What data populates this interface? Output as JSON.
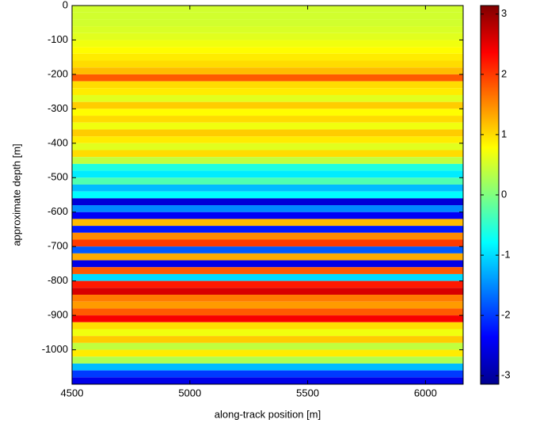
{
  "chart_data": {
    "type": "heatmap",
    "xlabel": "along-track position [m]",
    "ylabel": "approximate depth [m]",
    "xlim": [
      4500,
      6160
    ],
    "xticks": [
      4500,
      5000,
      5500,
      6000
    ],
    "ylim": [
      -1100,
      0
    ],
    "yticks": [
      0,
      -100,
      -200,
      -300,
      -400,
      -500,
      -600,
      -700,
      -800,
      -900,
      -1000
    ],
    "y": [
      -10,
      -30,
      -50,
      -70,
      -90,
      -110,
      -130,
      -150,
      -170,
      -190,
      -210,
      -230,
      -250,
      -270,
      -290,
      -310,
      -330,
      -350,
      -370,
      -390,
      -410,
      -430,
      -450,
      -470,
      -490,
      -510,
      -530,
      -550,
      -570,
      -590,
      -610,
      -630,
      -650,
      -670,
      -690,
      -710,
      -730,
      -750,
      -770,
      -790,
      -810,
      -830,
      -850,
      -870,
      -890,
      -910,
      -930,
      -950,
      -970,
      -990,
      -1010,
      -1030,
      -1050,
      -1070,
      -1090
    ],
    "values": [
      0.5,
      0.5,
      0.5,
      0.55,
      0.6,
      0.7,
      0.8,
      0.9,
      1.0,
      1.2,
      1.8,
      1.0,
      0.9,
      0.6,
      1.1,
      0.8,
      1.0,
      0.7,
      1.1,
      0.9,
      0.6,
      1.0,
      0.4,
      -0.6,
      -0.9,
      -0.3,
      -1.2,
      -0.8,
      -2.6,
      -1.5,
      -2.4,
      1.2,
      -2.2,
      1.5,
      2.0,
      -1.8,
      1.3,
      -2.5,
      1.8,
      -1.0,
      2.2,
      2.6,
      1.6,
      1.4,
      1.8,
      2.4,
      1.0,
      0.7,
      1.1,
      0.4,
      0.9,
      0.3,
      -1.2,
      -2.0,
      -2.5
    ],
    "clim": [
      -3.14159,
      3.14159
    ],
    "cticks": [
      -3,
      -2,
      -1,
      0,
      1,
      2,
      3
    ],
    "colormap": "jet"
  }
}
